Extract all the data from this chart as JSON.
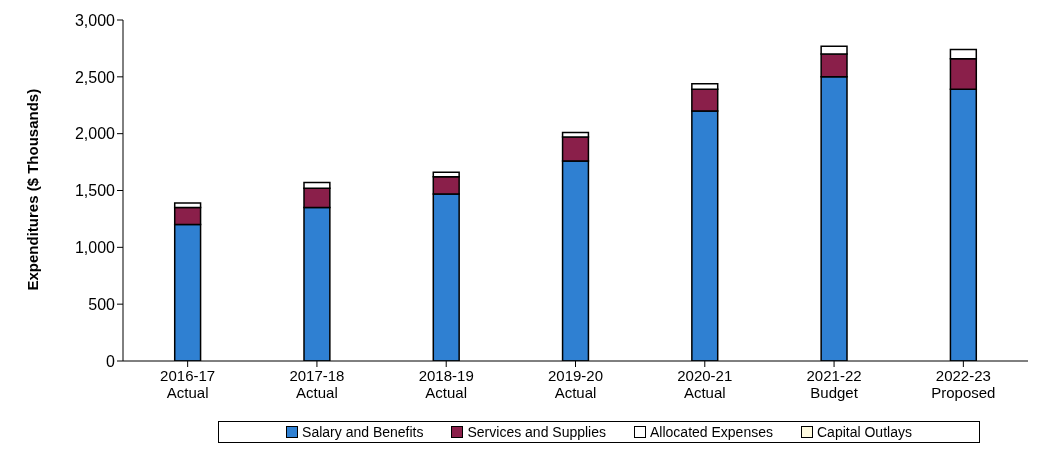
{
  "chart_data": {
    "type": "bar",
    "stacked": true,
    "ylabel": "Expenditures ($ Thousands)",
    "categories": [
      "2016-17\nActual",
      "2017-18\nActual",
      "2018-19\nActual",
      "2019-20\nActual",
      "2020-21\nActual",
      "2021-22\nBudget",
      "2022-23\nProposed"
    ],
    "series": [
      {
        "name": "Salary and Benefits",
        "color": "#2f80d2",
        "values": [
          1200,
          1350,
          1470,
          1760,
          2200,
          2500,
          2390
        ]
      },
      {
        "name": "Services and Supplies",
        "color": "#8a1f4a",
        "values": [
          150,
          170,
          150,
          210,
          190,
          200,
          270
        ]
      },
      {
        "name": "Allocated Expenses",
        "color": "#ffffff",
        "values": [
          40,
          50,
          40,
          40,
          50,
          70,
          80
        ]
      },
      {
        "name": "Capital Outlays",
        "color": "#fffbe0",
        "values": [
          0,
          0,
          0,
          0,
          0,
          0,
          0
        ]
      }
    ],
    "ylim": [
      0,
      3000
    ],
    "yticks": [
      0,
      500,
      {
        "value": 1000,
        "label": "1,000"
      },
      {
        "value": 1500,
        "label": "1,500"
      },
      {
        "value": 2000,
        "label": "2,000"
      },
      {
        "value": 2500,
        "label": "2,500"
      },
      {
        "value": 3000,
        "label": "3,000"
      }
    ],
    "grid": false,
    "legend": "bottom"
  }
}
